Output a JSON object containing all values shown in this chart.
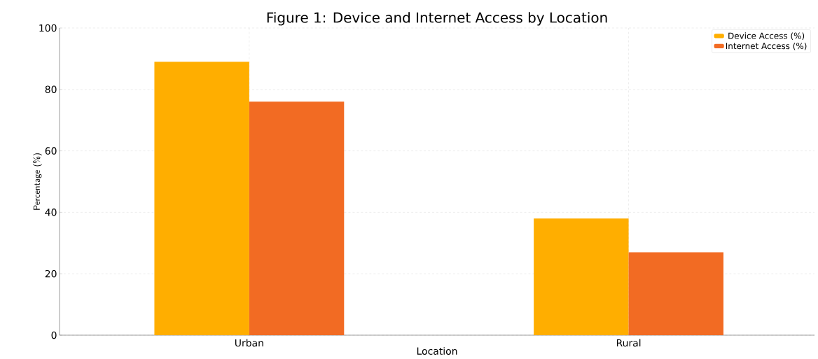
{
  "chart_data": {
    "type": "bar",
    "title": "Figure 1: Device and Internet Access by Location",
    "xlabel": "Location",
    "ylabel": "Percentage (%)",
    "categories": [
      "Urban",
      "Rural"
    ],
    "series": [
      {
        "name": "Device Access (%)",
        "color": "#ffae00",
        "values": [
          89,
          38
        ]
      },
      {
        "name": "Internet Access (%)",
        "color": "#f26b23",
        "values": [
          76,
          27
        ]
      }
    ],
    "ylim": [
      0,
      100
    ],
    "yticks": [
      0,
      20,
      40,
      60,
      80,
      100
    ],
    "grid": true,
    "legend": "top right"
  }
}
